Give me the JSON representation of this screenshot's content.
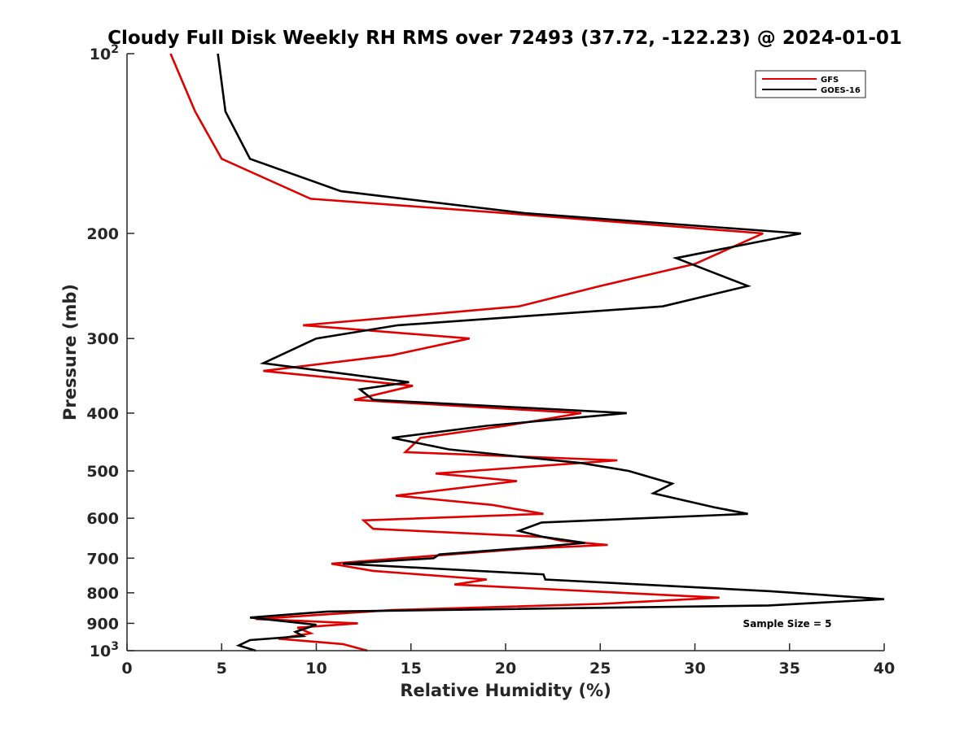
{
  "chart_data": {
    "type": "line",
    "title": "Cloudy Full Disk Weekly RH RMS over 72493 (37.72, -122.23) @ 2024-01-01",
    "xlabel": "Relative Humidity (%)",
    "ylabel": "Pressure (mb)",
    "xlim": [
      0,
      40
    ],
    "ylim": [
      100,
      1000
    ],
    "y_scale": "log",
    "y_reversed": true,
    "x_ticks": [
      "0",
      "5",
      "10",
      "15",
      "20",
      "25",
      "30",
      "35",
      "40"
    ],
    "y_ticks": [
      {
        "value": 100,
        "base": "10",
        "exp": "2"
      },
      {
        "value": 200,
        "label": "200"
      },
      {
        "value": 300,
        "label": "300"
      },
      {
        "value": 400,
        "label": "400"
      },
      {
        "value": 500,
        "label": "500"
      },
      {
        "value": 600,
        "label": "600"
      },
      {
        "value": 700,
        "label": "700"
      },
      {
        "value": 800,
        "label": "800"
      },
      {
        "value": 900,
        "label": "900"
      },
      {
        "value": 1000,
        "base": "10",
        "exp": "3"
      }
    ],
    "legend_position": "top-right",
    "annotation": "Sample Size = 5",
    "series": [
      {
        "name": "GFS",
        "color": "#e00000",
        "points": [
          [
            2.3,
            100
          ],
          [
            3.6,
            125
          ],
          [
            5.0,
            150
          ],
          [
            9.7,
            175
          ],
          [
            20.0,
            185
          ],
          [
            33.6,
            200
          ],
          [
            30.0,
            225
          ],
          [
            25.0,
            245
          ],
          [
            20.7,
            265
          ],
          [
            9.3,
            285
          ],
          [
            18.1,
            300
          ],
          [
            14.0,
            320
          ],
          [
            7.2,
            340
          ],
          [
            15.1,
            360
          ],
          [
            12.0,
            380
          ],
          [
            24.0,
            400
          ],
          [
            20.0,
            420
          ],
          [
            15.5,
            440
          ],
          [
            14.7,
            465
          ],
          [
            25.9,
            480
          ],
          [
            16.3,
            505
          ],
          [
            20.6,
            520
          ],
          [
            14.2,
            550
          ],
          [
            19.3,
            570
          ],
          [
            22.0,
            590
          ],
          [
            12.5,
            605
          ],
          [
            13.0,
            625
          ],
          [
            22.0,
            645
          ],
          [
            23.0,
            655
          ],
          [
            25.4,
            665
          ],
          [
            21.0,
            675
          ],
          [
            14.5,
            700
          ],
          [
            10.8,
            715
          ],
          [
            13.0,
            735
          ],
          [
            19.0,
            760
          ],
          [
            17.3,
            775
          ],
          [
            31.3,
            815
          ],
          [
            25.0,
            835
          ],
          [
            14.0,
            855
          ],
          [
            6.8,
            885
          ],
          [
            12.2,
            900
          ],
          [
            9.0,
            915
          ],
          [
            9.7,
            935
          ],
          [
            8.0,
            955
          ],
          [
            11.4,
            975
          ],
          [
            12.7,
            1000
          ]
        ]
      },
      {
        "name": "GOES-16",
        "color": "#000000",
        "points": [
          [
            4.8,
            100
          ],
          [
            5.2,
            125
          ],
          [
            6.5,
            150
          ],
          [
            11.3,
            170
          ],
          [
            21.0,
            185
          ],
          [
            35.6,
            200
          ],
          [
            29.0,
            220
          ],
          [
            32.8,
            245
          ],
          [
            28.3,
            265
          ],
          [
            14.3,
            285
          ],
          [
            10.0,
            300
          ],
          [
            7.2,
            330
          ],
          [
            14.9,
            355
          ],
          [
            12.3,
            365
          ],
          [
            13.0,
            380
          ],
          [
            26.4,
            400
          ],
          [
            19.0,
            420
          ],
          [
            14.0,
            440
          ],
          [
            17.0,
            460
          ],
          [
            24.0,
            485
          ],
          [
            26.5,
            500
          ],
          [
            28.8,
            525
          ],
          [
            27.8,
            545
          ],
          [
            31.0,
            575
          ],
          [
            32.8,
            590
          ],
          [
            21.9,
            610
          ],
          [
            20.7,
            630
          ],
          [
            22.0,
            645
          ],
          [
            23.5,
            655
          ],
          [
            24.2,
            660
          ],
          [
            21.8,
            670
          ],
          [
            16.5,
            690
          ],
          [
            16.2,
            700
          ],
          [
            11.4,
            715
          ],
          [
            22.0,
            745
          ],
          [
            22.1,
            760
          ],
          [
            34.0,
            795
          ],
          [
            40.0,
            820
          ],
          [
            33.9,
            840
          ],
          [
            10.6,
            860
          ],
          [
            6.5,
            880
          ],
          [
            10.0,
            905
          ],
          [
            8.9,
            930
          ],
          [
            9.3,
            945
          ],
          [
            6.5,
            960
          ],
          [
            5.9,
            980
          ],
          [
            6.8,
            1000
          ]
        ]
      }
    ]
  }
}
